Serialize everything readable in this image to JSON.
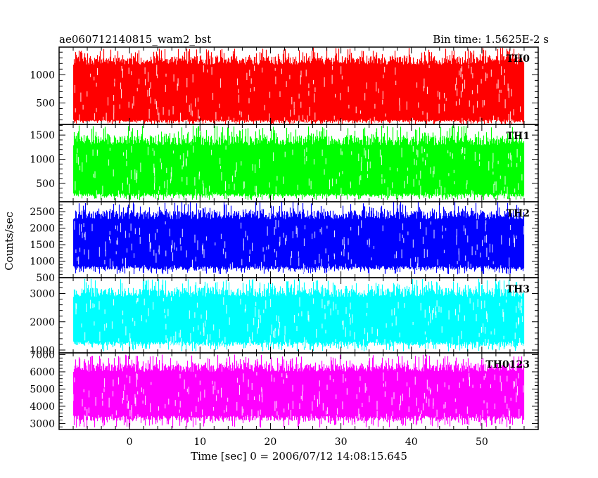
{
  "chart_data": {
    "type": "line",
    "title": "ae060712140815_wam2_bst",
    "subtitle": "Bin time: 1.5625E-2 s",
    "xlabel": "Time [sec] 0 = 2006/07/12 14:08:15.645",
    "ylabel": "Counts/sec",
    "xlim": [
      -10,
      58
    ],
    "x_data_range": [
      -8,
      56
    ],
    "xticks": [
      "0",
      "10",
      "20",
      "30",
      "40",
      "50"
    ],
    "panels": [
      {
        "name": "TH0",
        "color": "#ff0000",
        "ylim": [
          120,
          1490
        ],
        "yticks": [
          "500",
          "1000"
        ],
        "band": {
          "low": 200,
          "mid": 900,
          "high": 1180
        },
        "spike_range": [
          120,
          1480
        ]
      },
      {
        "name": "TH1",
        "color": "#00ff00",
        "ylim": [
          120,
          1720
        ],
        "yticks": [
          "500",
          "1000",
          "1500"
        ],
        "band": {
          "low": 290,
          "mid": 950,
          "high": 1290
        },
        "spike_range": [
          150,
          1700
        ]
      },
      {
        "name": "TH2",
        "color": "#0000ff",
        "ylim": [
          500,
          2800
        ],
        "yticks": [
          "500",
          "1000",
          "1500",
          "2000",
          "2500"
        ],
        "band": {
          "low": 850,
          "mid": 1750,
          "high": 2270
        },
        "spike_range": [
          600,
          2800
        ]
      },
      {
        "name": "TH3",
        "color": "#00ffff",
        "ylim": [
          900,
          3560
        ],
        "yticks": [
          "1000",
          "2000",
          "3000"
        ],
        "band": {
          "low": 1300,
          "mid": 2250,
          "high": 2880
        },
        "spike_range": [
          950,
          3520
        ]
      },
      {
        "name": "TH0123",
        "color": "#ff00ff",
        "ylim": [
          2650,
          7100
        ],
        "yticks": [
          "3000",
          "4000",
          "5000",
          "6000",
          "7000"
        ],
        "band": {
          "low": 3450,
          "mid": 4800,
          "high": 6000
        },
        "spike_range": [
          2750,
          7000
        ]
      }
    ]
  }
}
